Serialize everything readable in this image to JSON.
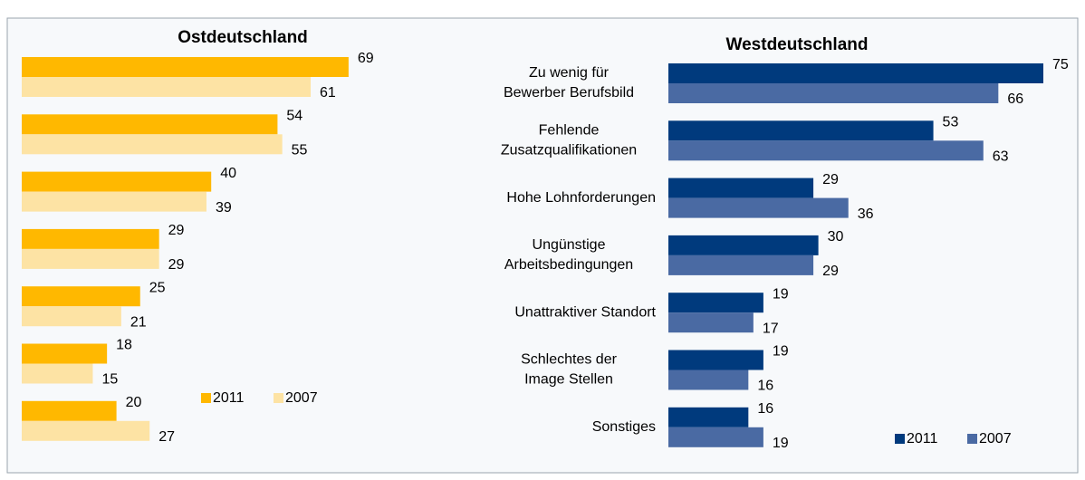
{
  "chart_data": [
    {
      "type": "barh",
      "title": "Ostdeutschland",
      "categories": [
        null,
        null,
        null,
        null,
        null,
        null,
        null
      ],
      "series": [
        {
          "name": "2011",
          "color": "#ffb800",
          "values": [
            69,
            54,
            40,
            29,
            25,
            18,
            20
          ]
        },
        {
          "name": "2007",
          "color": "#fde3a4",
          "values": [
            61,
            55,
            39,
            29,
            21,
            15,
            27
          ]
        }
      ]
    },
    {
      "type": "barh",
      "title": "Westdeutschland",
      "categories": [
        "Zu wenig Bewerber für Berufsbild",
        "Fehlende Zusatzqualifikationen",
        "Hohe Lohnforderungen",
        "Ungünstige Arbeitsbedingungen",
        "Unattraktiver Standort",
        "Schlechtes Image der Stellen",
        "Sonstiges"
      ],
      "series": [
        {
          "name": "2011",
          "color": "#003a7d",
          "values": [
            75,
            53,
            29,
            30,
            19,
            19,
            16
          ]
        },
        {
          "name": "2007",
          "color": "#4a6aa3",
          "values": [
            66,
            63,
            36,
            29,
            17,
            16,
            19
          ]
        }
      ]
    }
  ]
}
